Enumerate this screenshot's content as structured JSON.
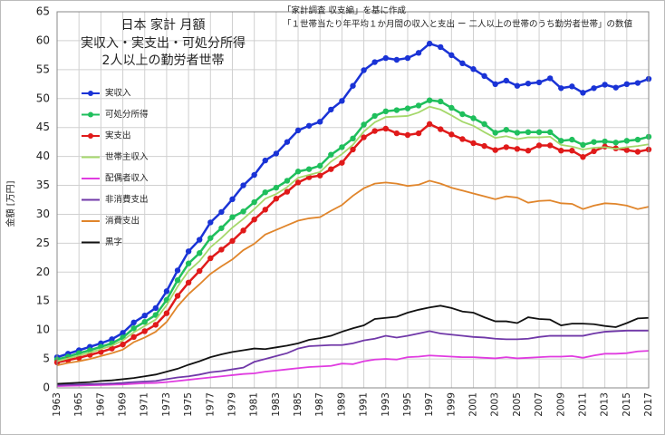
{
  "chart_data": {
    "type": "line",
    "title": [
      "日本 家計 月額",
      "実収入・実支出・可処分所得",
      "2人以上の勤労者世帯"
    ],
    "notes": [
      "「家計調査 収支編」を基に作成",
      "「１世帯当たり年平均１か月間の収入と支出 ー 二人以上の世帯のうち勤労者世帯」の数値"
    ],
    "y_label": "金額 [万円]",
    "x": [
      1963,
      1964,
      1965,
      1966,
      1967,
      1968,
      1969,
      1970,
      1971,
      1972,
      1973,
      1974,
      1975,
      1976,
      1977,
      1978,
      1979,
      1980,
      1981,
      1982,
      1983,
      1984,
      1985,
      1986,
      1987,
      1988,
      1989,
      1990,
      1991,
      1992,
      1993,
      1994,
      1995,
      1996,
      1997,
      1998,
      1999,
      2000,
      2001,
      2002,
      2003,
      2004,
      2005,
      2006,
      2007,
      2008,
      2009,
      2010,
      2011,
      2012,
      2013,
      2014,
      2015,
      2016,
      2017
    ],
    "xlim": [
      1963,
      2017
    ],
    "xticks": [
      1963,
      1965,
      1967,
      1969,
      1971,
      1973,
      1975,
      1977,
      1979,
      1981,
      1983,
      1985,
      1987,
      1989,
      1991,
      1993,
      1995,
      1997,
      1999,
      2001,
      2003,
      2005,
      2007,
      2009,
      2011,
      2013,
      2015,
      2017
    ],
    "ylim": [
      0,
      65
    ],
    "yticks": [
      0,
      5,
      10,
      15,
      20,
      25,
      30,
      35,
      40,
      45,
      50,
      55,
      60,
      65
    ],
    "grid": true,
    "legend": "upper left",
    "series": [
      {
        "name": "実収入",
        "color": "#1a33d6",
        "marker": true,
        "values": [
          5.3,
          5.9,
          6.5,
          7.1,
          7.7,
          8.4,
          9.5,
          11.3,
          12.5,
          13.8,
          16.7,
          20.3,
          23.6,
          25.6,
          28.6,
          30.4,
          32.6,
          35.0,
          36.8,
          39.3,
          40.5,
          42.5,
          44.5,
          45.3,
          46.0,
          48.1,
          49.6,
          52.2,
          54.9,
          56.3,
          57.0,
          56.7,
          57.0,
          57.9,
          59.5,
          58.9,
          57.5,
          56.1,
          55.1,
          53.9,
          52.5,
          53.1,
          52.2,
          52.6,
          52.8,
          53.5,
          51.8,
          52.1,
          51.0,
          51.8,
          52.4,
          51.9,
          52.5,
          52.7,
          53.4
        ]
      },
      {
        "name": "可処分所得",
        "color": "#1fbf5c",
        "marker": true,
        "values": [
          4.9,
          5.4,
          6.0,
          6.5,
          7.1,
          7.7,
          8.7,
          10.3,
          11.4,
          12.6,
          15.2,
          18.6,
          21.5,
          23.3,
          25.9,
          27.6,
          29.5,
          30.5,
          32.1,
          33.8,
          34.6,
          35.8,
          37.4,
          37.8,
          38.4,
          40.3,
          41.6,
          43.1,
          45.5,
          47.0,
          47.8,
          48.0,
          48.3,
          48.8,
          49.7,
          49.5,
          48.4,
          47.3,
          46.6,
          45.6,
          44.1,
          44.6,
          44.1,
          44.2,
          44.2,
          44.2,
          42.7,
          42.9,
          42.0,
          42.5,
          42.6,
          42.4,
          42.7,
          42.9,
          43.4
        ]
      },
      {
        "name": "実支出",
        "color": "#e01a1a",
        "marker": true,
        "values": [
          4.4,
          4.8,
          5.2,
          5.7,
          6.2,
          6.8,
          7.5,
          8.8,
          9.8,
          10.9,
          12.9,
          15.9,
          18.2,
          20.2,
          22.4,
          23.9,
          25.4,
          27.2,
          29.1,
          30.8,
          32.7,
          33.9,
          35.5,
          36.4,
          36.7,
          37.8,
          38.9,
          41.2,
          43.3,
          44.4,
          44.8,
          44.0,
          43.7,
          44.0,
          45.6,
          44.7,
          43.8,
          43.0,
          42.3,
          41.8,
          41.1,
          41.6,
          41.3,
          41.0,
          41.9,
          41.9,
          41.0,
          41.0,
          39.9,
          40.9,
          41.7,
          41.4,
          41.1,
          40.8,
          41.2
        ]
      },
      {
        "name": "世帯主収入",
        "color": "#a5d86b",
        "marker": false,
        "values": [
          4.6,
          5.1,
          5.6,
          6.1,
          6.7,
          7.3,
          8.2,
          9.6,
          10.7,
          11.8,
          14.3,
          17.5,
          20.2,
          21.9,
          24.3,
          25.9,
          27.7,
          29.2,
          30.9,
          32.7,
          33.5,
          34.7,
          36.3,
          36.8,
          37.3,
          39.1,
          40.4,
          42.0,
          44.3,
          45.9,
          46.8,
          46.9,
          47.0,
          47.6,
          48.6,
          48.1,
          47.1,
          46.0,
          45.3,
          44.2,
          43.2,
          43.5,
          43.0,
          43.3,
          43.3,
          43.4,
          42.0,
          41.7,
          41.2,
          41.5,
          41.6,
          41.3,
          41.6,
          41.8,
          42.1
        ]
      },
      {
        "name": "配偶者収入",
        "color": "#e03ce0",
        "marker": false,
        "values": [
          0.3,
          0.35,
          0.4,
          0.45,
          0.5,
          0.55,
          0.6,
          0.7,
          0.8,
          0.85,
          1.0,
          1.2,
          1.4,
          1.6,
          1.8,
          2.0,
          2.2,
          2.4,
          2.5,
          2.8,
          3.0,
          3.2,
          3.4,
          3.6,
          3.7,
          3.8,
          4.2,
          4.1,
          4.6,
          4.9,
          5.0,
          4.9,
          5.3,
          5.4,
          5.6,
          5.5,
          5.4,
          5.3,
          5.3,
          5.2,
          5.1,
          5.3,
          5.1,
          5.2,
          5.3,
          5.4,
          5.4,
          5.5,
          5.2,
          5.6,
          5.9,
          5.9,
          6.0,
          6.3,
          6.4
        ]
      },
      {
        "name": "非消費支出",
        "color": "#7038a8",
        "marker": false,
        "values": [
          0.5,
          0.55,
          0.6,
          0.65,
          0.7,
          0.75,
          0.85,
          1.0,
          1.1,
          1.2,
          1.5,
          1.8,
          2.0,
          2.3,
          2.7,
          2.9,
          3.2,
          3.5,
          4.5,
          5.0,
          5.5,
          6.0,
          6.8,
          7.2,
          7.3,
          7.4,
          7.4,
          7.7,
          8.2,
          8.5,
          9.0,
          8.7,
          9.0,
          9.4,
          9.8,
          9.4,
          9.2,
          9.0,
          8.8,
          8.7,
          8.5,
          8.4,
          8.4,
          8.5,
          8.8,
          9.0,
          9.0,
          9.0,
          9.0,
          9.4,
          9.7,
          9.8,
          9.9,
          9.9,
          9.9
        ]
      },
      {
        "name": "消費支出",
        "color": "#e0852b",
        "marker": false,
        "values": [
          3.9,
          4.3,
          4.6,
          5.0,
          5.5,
          6.0,
          6.6,
          7.9,
          8.7,
          9.7,
          11.4,
          14.1,
          16.2,
          17.9,
          19.7,
          21.0,
          22.2,
          23.8,
          24.9,
          26.5,
          27.3,
          28.1,
          28.9,
          29.3,
          29.5,
          30.6,
          31.6,
          33.2,
          34.5,
          35.3,
          35.5,
          35.3,
          34.9,
          35.1,
          35.8,
          35.3,
          34.6,
          34.1,
          33.6,
          33.1,
          32.6,
          33.1,
          32.9,
          32.0,
          32.3,
          32.4,
          31.9,
          31.8,
          30.9,
          31.5,
          31.9,
          31.8,
          31.5,
          30.9,
          31.3
        ]
      },
      {
        "name": "黒字",
        "color": "#111111",
        "marker": false,
        "values": [
          0.7,
          0.8,
          0.9,
          1.0,
          1.2,
          1.3,
          1.5,
          1.7,
          2.0,
          2.3,
          2.8,
          3.3,
          4.0,
          4.6,
          5.3,
          5.8,
          6.2,
          6.5,
          6.8,
          6.7,
          7.0,
          7.3,
          7.7,
          8.3,
          8.6,
          9.0,
          9.7,
          10.3,
          10.8,
          11.9,
          12.1,
          12.3,
          13.0,
          13.5,
          13.9,
          14.2,
          13.8,
          13.2,
          13.0,
          12.2,
          11.5,
          11.5,
          11.2,
          12.2,
          11.9,
          11.8,
          10.8,
          11.1,
          11.1,
          11.0,
          10.7,
          10.5,
          11.2,
          12.0,
          12.1
        ]
      }
    ]
  }
}
